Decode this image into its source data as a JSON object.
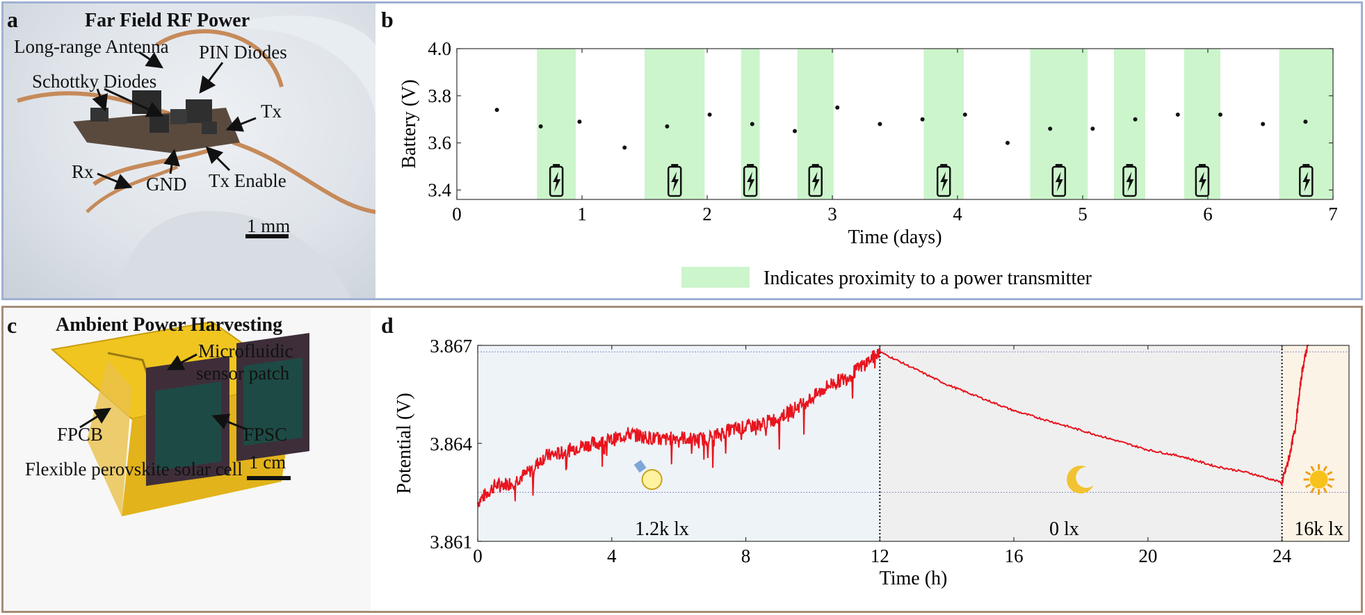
{
  "panel_a": {
    "letter": "a",
    "title": "Far Field RF Power",
    "labels": {
      "antenna": "Long-range Antenna",
      "pin": "PIN Diodes",
      "schottky": "Schottky Diodes",
      "tx": "Tx",
      "rx": "Rx",
      "gnd": "GND",
      "tx_enable": "Tx Enable"
    },
    "scalebar": "1 mm"
  },
  "panel_c": {
    "letter": "c",
    "title": "Ambient Power Harvesting",
    "labels": {
      "micro1": "Microfluidic",
      "micro2": "sensor patch",
      "fpcb": "FPCB",
      "fpsc": "FPSC",
      "caption": "Flexible perovskite solar cell"
    },
    "scalebar": "1 cm"
  },
  "colors": {
    "shade_green": "#ccf5cc",
    "trace_red": "#e8141e",
    "frame_top": "#9fb0d3",
    "frame_bottom": "#a68d76"
  },
  "chart_data": [
    {
      "panel": "b",
      "type": "scatter",
      "xlabel": "Time (days)",
      "ylabel": "Battery (V)",
      "xlim": [
        0,
        7
      ],
      "ylim": [
        3.36,
        4.0
      ],
      "xticks": [
        "0",
        "1",
        "2",
        "3",
        "4",
        "5",
        "6",
        "7"
      ],
      "yticks": [
        "3.4",
        "3.6",
        "3.8",
        "4.0"
      ],
      "shaded_intervals": [
        [
          0.64,
          0.95
        ],
        [
          1.5,
          1.98
        ],
        [
          2.27,
          2.42
        ],
        [
          2.72,
          3.01
        ],
        [
          3.73,
          4.05
        ],
        [
          4.58,
          5.04
        ],
        [
          5.25,
          5.5
        ],
        [
          5.81,
          6.1
        ],
        [
          6.57,
          7.0
        ]
      ],
      "points": [
        [
          0.32,
          3.74
        ],
        [
          0.67,
          3.67
        ],
        [
          0.98,
          3.69
        ],
        [
          1.34,
          3.58
        ],
        [
          1.68,
          3.67
        ],
        [
          2.02,
          3.72
        ],
        [
          2.36,
          3.68
        ],
        [
          2.7,
          3.65
        ],
        [
          3.04,
          3.75
        ],
        [
          3.38,
          3.68
        ],
        [
          3.72,
          3.7
        ],
        [
          4.06,
          3.72
        ],
        [
          4.4,
          3.6
        ],
        [
          4.74,
          3.66
        ],
        [
          5.08,
          3.66
        ],
        [
          5.42,
          3.7
        ],
        [
          5.76,
          3.72
        ],
        [
          6.1,
          3.72
        ],
        [
          6.44,
          3.68
        ],
        [
          6.78,
          3.69
        ]
      ],
      "legend": "Indicates proximity to a power transmitter",
      "icon": "battery-charging-icon"
    },
    {
      "panel": "d",
      "type": "line",
      "xlabel": "Time (h)",
      "ylabel": "Potential (V)",
      "xlim": [
        0,
        26
      ],
      "ylim": [
        3.861,
        3.867
      ],
      "xticks": [
        "0",
        "4",
        "8",
        "12",
        "16",
        "20",
        "24"
      ],
      "yticks": [
        "3.861",
        "3.864",
        "3.867"
      ],
      "segments": [
        {
          "label": "1.2k lx",
          "x": [
            0,
            12
          ],
          "color": "#eef3f7",
          "icon": "light-bulb-icon"
        },
        {
          "label": "0 lx",
          "x": [
            12,
            24
          ],
          "color": "#efefef",
          "icon": "moon-icon"
        },
        {
          "label": "16k lx",
          "x": [
            24,
            26
          ],
          "color": "#fbf3e6",
          "icon": "sun-icon"
        }
      ],
      "reference_lines": [
        3.8625,
        3.8668
      ],
      "series": [
        {
          "values": [
            [
              0,
              3.8622
            ],
            [
              0.5,
              3.8627
            ],
            [
              1,
              3.8628
            ],
            [
              1.5,
              3.8631
            ],
            [
              2,
              3.8636
            ],
            [
              2.5,
              3.8637
            ],
            [
              3,
              3.8639
            ],
            [
              3.5,
              3.864
            ],
            [
              4,
              3.8641
            ],
            [
              4.5,
              3.8643
            ],
            [
              5,
              3.8642
            ],
            [
              5.5,
              3.8641
            ],
            [
              6,
              3.8642
            ],
            [
              6.5,
              3.8641
            ],
            [
              7,
              3.8642
            ],
            [
              7.5,
              3.8644
            ],
            [
              8,
              3.8645
            ],
            [
              8.5,
              3.8646
            ],
            [
              9,
              3.8648
            ],
            [
              9.5,
              3.8651
            ],
            [
              10,
              3.8654
            ],
            [
              10.5,
              3.8658
            ],
            [
              11,
              3.866
            ],
            [
              11.5,
              3.8664
            ],
            [
              12,
              3.8668
            ],
            [
              13,
              3.8663
            ],
            [
              14,
              3.8658
            ],
            [
              15,
              3.8654
            ],
            [
              16,
              3.865
            ],
            [
              17,
              3.8647
            ],
            [
              18,
              3.8644
            ],
            [
              19,
              3.8641
            ],
            [
              20,
              3.8638
            ],
            [
              21,
              3.8636
            ],
            [
              22,
              3.8633
            ],
            [
              23,
              3.8631
            ],
            [
              24,
              3.8628
            ],
            [
              24.2,
              3.8635
            ],
            [
              24.4,
              3.8645
            ],
            [
              24.6,
              3.8662
            ],
            [
              24.8,
              3.8672
            ]
          ]
        }
      ]
    }
  ]
}
